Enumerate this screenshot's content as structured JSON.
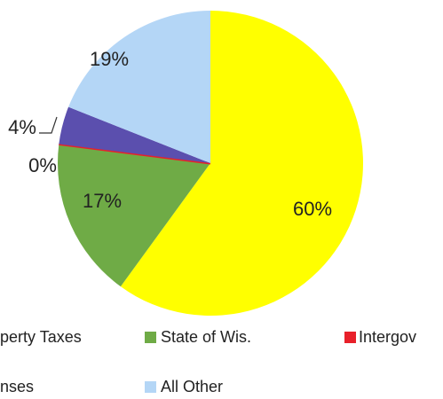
{
  "chart_data": {
    "type": "pie",
    "categories": [
      "perty Taxes",
      "State of Wis.",
      "Intergov",
      "nses",
      "All Other"
    ],
    "values": [
      60,
      17,
      0,
      4,
      19
    ],
    "value_labels": [
      "60%",
      "17%",
      "0%",
      "4%",
      "19%"
    ],
    "colors": [
      "#ffff00",
      "#6fab46",
      "#e8202a",
      "#5b4fae",
      "#b4d6f6"
    ]
  }
}
